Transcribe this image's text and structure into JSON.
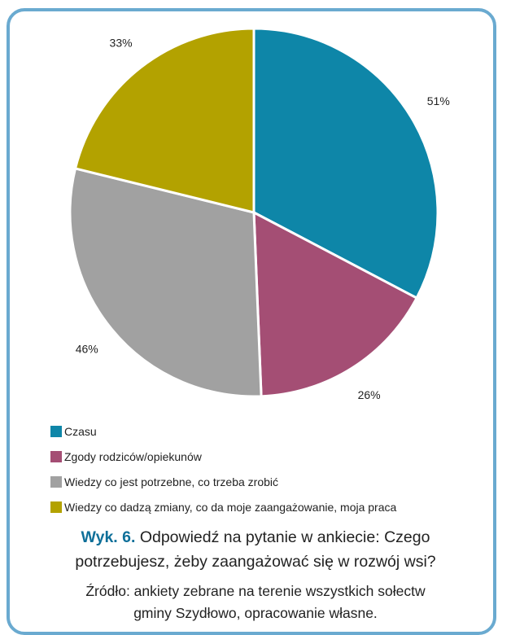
{
  "chart_data": {
    "type": "pie",
    "labels": [
      "Czasu",
      "Zgody rodziców/opiekunów",
      "Wiedzy co jest potrzebne, co trzeba zrobić",
      "Wiedzy co dadzą zmiany, co da moje zaangażowanie, moja praca"
    ],
    "values": [
      51,
      26,
      46,
      33
    ],
    "value_labels": [
      "51%",
      "26%",
      "46%",
      "33%"
    ],
    "colors": [
      "#0e86a8",
      "#a44e74",
      "#a1a1a1",
      "#b3a200"
    ],
    "start_angle_deg": 0,
    "direction": "clockwise",
    "legend_position": "bottom-left"
  },
  "caption": {
    "prefix": "Wyk. 6.",
    "line1": "Odpowiedź na pytanie w ankiecie: Czego",
    "line2": "potrzebujesz, żeby zaangażować się w rozwój wsi?",
    "source_line1": "Źródło: ankiety zebrane na terenie wszystkich sołectw",
    "source_line2": "gminy Szydłowo, opracowanie własne."
  },
  "frame_color": "#6aaad0"
}
